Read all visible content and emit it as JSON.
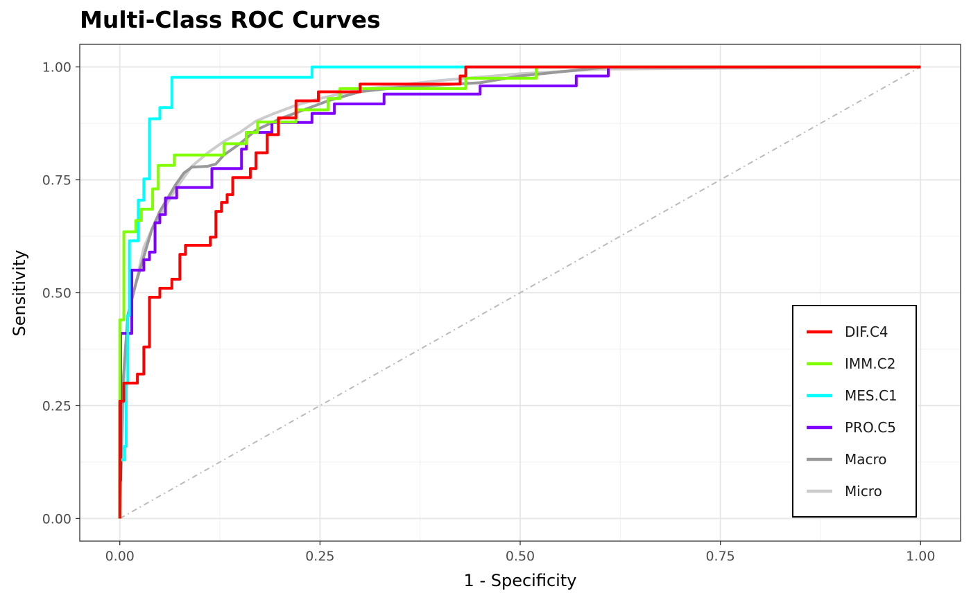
{
  "chart_data": {
    "type": "line",
    "title": "Multi-Class ROC Curves",
    "xlabel": "1 - Specificity",
    "ylabel": "Sensitivity",
    "xlim": [
      -0.05,
      1.05
    ],
    "ylim": [
      -0.05,
      1.05
    ],
    "x_ticks": [
      "0.00",
      "0.25",
      "0.50",
      "0.75",
      "1.00"
    ],
    "y_ticks": [
      "0.00",
      "0.25",
      "0.50",
      "0.75",
      "1.00"
    ],
    "grid": true,
    "legend_position": "bottom-right",
    "series": [
      {
        "name": "DIF.C4",
        "color": "#ff0000",
        "step": true,
        "points": [
          [
            0,
            0
          ],
          [
            0,
            0.26
          ],
          [
            0.005,
            0.26
          ],
          [
            0.005,
            0.3
          ],
          [
            0.022,
            0.3
          ],
          [
            0.022,
            0.32
          ],
          [
            0.03,
            0.32
          ],
          [
            0.03,
            0.38
          ],
          [
            0.037,
            0.38
          ],
          [
            0.037,
            0.49
          ],
          [
            0.05,
            0.49
          ],
          [
            0.05,
            0.51
          ],
          [
            0.065,
            0.51
          ],
          [
            0.065,
            0.53
          ],
          [
            0.075,
            0.53
          ],
          [
            0.075,
            0.585
          ],
          [
            0.082,
            0.585
          ],
          [
            0.082,
            0.605
          ],
          [
            0.113,
            0.605
          ],
          [
            0.113,
            0.623
          ],
          [
            0.12,
            0.623
          ],
          [
            0.12,
            0.68
          ],
          [
            0.127,
            0.68
          ],
          [
            0.127,
            0.7
          ],
          [
            0.134,
            0.7
          ],
          [
            0.134,
            0.717
          ],
          [
            0.141,
            0.717
          ],
          [
            0.141,
            0.755
          ],
          [
            0.163,
            0.755
          ],
          [
            0.163,
            0.775
          ],
          [
            0.17,
            0.775
          ],
          [
            0.17,
            0.81
          ],
          [
            0.184,
            0.81
          ],
          [
            0.184,
            0.85
          ],
          [
            0.198,
            0.85
          ],
          [
            0.198,
            0.887
          ],
          [
            0.22,
            0.887
          ],
          [
            0.22,
            0.925
          ],
          [
            0.248,
            0.925
          ],
          [
            0.248,
            0.945
          ],
          [
            0.3,
            0.945
          ],
          [
            0.3,
            0.962
          ],
          [
            0.425,
            0.962
          ],
          [
            0.425,
            0.98
          ],
          [
            0.432,
            0.98
          ],
          [
            0.432,
            1.0
          ],
          [
            1.0,
            1.0
          ]
        ]
      },
      {
        "name": "IMM.C2",
        "color": "#80ff00",
        "step": true,
        "points": [
          [
            0,
            0
          ],
          [
            0,
            0.44
          ],
          [
            0.005,
            0.44
          ],
          [
            0.005,
            0.635
          ],
          [
            0.02,
            0.635
          ],
          [
            0.02,
            0.66
          ],
          [
            0.027,
            0.66
          ],
          [
            0.027,
            0.685
          ],
          [
            0.041,
            0.685
          ],
          [
            0.041,
            0.73
          ],
          [
            0.048,
            0.73
          ],
          [
            0.048,
            0.782
          ],
          [
            0.068,
            0.782
          ],
          [
            0.068,
            0.805
          ],
          [
            0.13,
            0.805
          ],
          [
            0.13,
            0.83
          ],
          [
            0.158,
            0.83
          ],
          [
            0.158,
            0.855
          ],
          [
            0.172,
            0.855
          ],
          [
            0.172,
            0.878
          ],
          [
            0.22,
            0.878
          ],
          [
            0.22,
            0.905
          ],
          [
            0.26,
            0.905
          ],
          [
            0.26,
            0.93
          ],
          [
            0.275,
            0.93
          ],
          [
            0.275,
            0.952
          ],
          [
            0.432,
            0.952
          ],
          [
            0.432,
            0.975
          ],
          [
            0.52,
            0.975
          ],
          [
            0.52,
            1.0
          ],
          [
            1.0,
            1.0
          ]
        ]
      },
      {
        "name": "MES.C1",
        "color": "#00ffff",
        "step": true,
        "points": [
          [
            0,
            0
          ],
          [
            0,
            0.13
          ],
          [
            0.006,
            0.13
          ],
          [
            0.006,
            0.16
          ],
          [
            0.008,
            0.16
          ],
          [
            0.008,
            0.3
          ],
          [
            0.01,
            0.3
          ],
          [
            0.01,
            0.45
          ],
          [
            0.012,
            0.45
          ],
          [
            0.012,
            0.615
          ],
          [
            0.023,
            0.615
          ],
          [
            0.023,
            0.705
          ],
          [
            0.03,
            0.705
          ],
          [
            0.03,
            0.752
          ],
          [
            0.037,
            0.752
          ],
          [
            0.037,
            0.885
          ],
          [
            0.05,
            0.885
          ],
          [
            0.05,
            0.91
          ],
          [
            0.065,
            0.91
          ],
          [
            0.065,
            0.977
          ],
          [
            0.24,
            0.977
          ],
          [
            0.24,
            1.0
          ],
          [
            1.0,
            1.0
          ]
        ]
      },
      {
        "name": "PRO.C5",
        "color": "#8000ff",
        "step": true,
        "points": [
          [
            0,
            0
          ],
          [
            0,
            0.085
          ],
          [
            0.001,
            0.085
          ],
          [
            0.001,
            0.41
          ],
          [
            0.015,
            0.41
          ],
          [
            0.015,
            0.55
          ],
          [
            0.03,
            0.55
          ],
          [
            0.03,
            0.573
          ],
          [
            0.037,
            0.573
          ],
          [
            0.037,
            0.59
          ],
          [
            0.044,
            0.59
          ],
          [
            0.044,
            0.655
          ],
          [
            0.05,
            0.655
          ],
          [
            0.05,
            0.673
          ],
          [
            0.057,
            0.673
          ],
          [
            0.057,
            0.71
          ],
          [
            0.071,
            0.71
          ],
          [
            0.071,
            0.733
          ],
          [
            0.115,
            0.733
          ],
          [
            0.115,
            0.775
          ],
          [
            0.152,
            0.775
          ],
          [
            0.152,
            0.818
          ],
          [
            0.158,
            0.818
          ],
          [
            0.158,
            0.855
          ],
          [
            0.19,
            0.855
          ],
          [
            0.19,
            0.877
          ],
          [
            0.24,
            0.877
          ],
          [
            0.24,
            0.897
          ],
          [
            0.268,
            0.897
          ],
          [
            0.268,
            0.918
          ],
          [
            0.33,
            0.918
          ],
          [
            0.33,
            0.94
          ],
          [
            0.45,
            0.94
          ],
          [
            0.45,
            0.958
          ],
          [
            0.57,
            0.958
          ],
          [
            0.57,
            0.98
          ],
          [
            0.61,
            0.98
          ],
          [
            0.61,
            1.0
          ],
          [
            1.0,
            1.0
          ]
        ]
      },
      {
        "name": "Macro",
        "color": "#999999",
        "step": false,
        "points": [
          [
            0,
            0
          ],
          [
            0.004,
            0.3
          ],
          [
            0.01,
            0.45
          ],
          [
            0.02,
            0.52
          ],
          [
            0.03,
            0.58
          ],
          [
            0.04,
            0.64
          ],
          [
            0.05,
            0.68
          ],
          [
            0.06,
            0.71
          ],
          [
            0.07,
            0.74
          ],
          [
            0.08,
            0.765
          ],
          [
            0.09,
            0.778
          ],
          [
            0.11,
            0.78
          ],
          [
            0.12,
            0.785
          ],
          [
            0.13,
            0.805
          ],
          [
            0.15,
            0.83
          ],
          [
            0.17,
            0.86
          ],
          [
            0.2,
            0.885
          ],
          [
            0.23,
            0.905
          ],
          [
            0.26,
            0.925
          ],
          [
            0.3,
            0.945
          ],
          [
            0.35,
            0.955
          ],
          [
            0.45,
            0.965
          ],
          [
            0.5,
            0.98
          ],
          [
            0.61,
            1.0
          ],
          [
            1.0,
            1.0
          ]
        ]
      },
      {
        "name": "Micro",
        "color": "#cccccc",
        "step": false,
        "points": [
          [
            0,
            0
          ],
          [
            0.005,
            0.3
          ],
          [
            0.01,
            0.45
          ],
          [
            0.02,
            0.52
          ],
          [
            0.03,
            0.6
          ],
          [
            0.04,
            0.64
          ],
          [
            0.05,
            0.67
          ],
          [
            0.07,
            0.73
          ],
          [
            0.09,
            0.78
          ],
          [
            0.11,
            0.81
          ],
          [
            0.13,
            0.835
          ],
          [
            0.15,
            0.855
          ],
          [
            0.17,
            0.88
          ],
          [
            0.19,
            0.895
          ],
          [
            0.22,
            0.915
          ],
          [
            0.25,
            0.93
          ],
          [
            0.3,
            0.95
          ],
          [
            0.4,
            0.97
          ],
          [
            0.5,
            0.985
          ],
          [
            0.6,
            0.995
          ],
          [
            1.0,
            1.0
          ]
        ]
      }
    ],
    "reference_line": {
      "color": "#bbbbbb",
      "points": [
        [
          0,
          0
        ],
        [
          1,
          1
        ]
      ]
    }
  }
}
